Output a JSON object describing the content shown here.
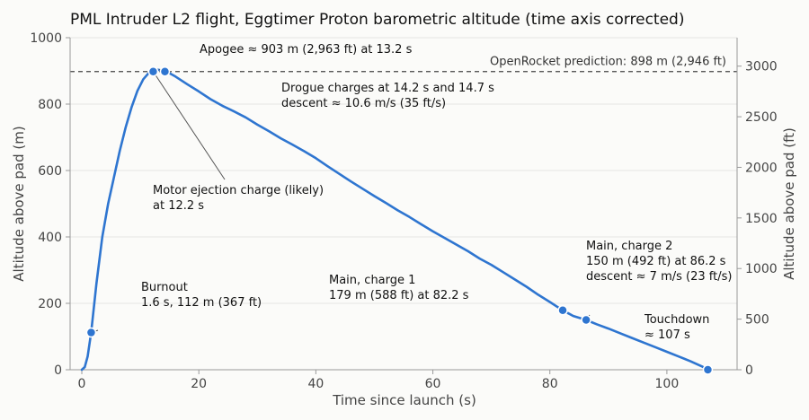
{
  "colors": {
    "line": "#2e75d0",
    "grid": "#e4e4e4",
    "axis": "#999999",
    "ref": "#444444",
    "background": "#fbfbf9"
  },
  "chart_data": {
    "type": "line",
    "title": "PML Intruder L2 flight, Eggtimer Proton barometric altitude (time axis corrected)",
    "xlabel": "Time since launch (s)",
    "ylabel": "Altitude above pad (m)",
    "y2label": "Altitude above pad (ft)",
    "xlim": [
      -2,
      112
    ],
    "ylim": [
      0,
      1000
    ],
    "y2lim": [
      0,
      3281
    ],
    "xticks": [
      0,
      20,
      40,
      60,
      80,
      100
    ],
    "yticks": [
      0,
      200,
      400,
      600,
      800,
      1000
    ],
    "y2ticks": [
      0,
      500,
      1000,
      1500,
      2000,
      2500,
      3000
    ],
    "grid": "horizontal",
    "series": [
      {
        "x": [
          0,
          0.5,
          1.0,
          1.6,
          2.5,
          3.5,
          4.5,
          5.5,
          6.5,
          7.5,
          8.5,
          9.5,
          10.5,
          11.5,
          12.2,
          13.2,
          14.2,
          14.7,
          16,
          18,
          20,
          22,
          24,
          26,
          28,
          30,
          32,
          34,
          36,
          38,
          40,
          42,
          44,
          46,
          48,
          50,
          52,
          54,
          56,
          58,
          60,
          62,
          64,
          66,
          68,
          70,
          72,
          74,
          76,
          78,
          80,
          82.2,
          84,
          86.2,
          88,
          90,
          92,
          94,
          96,
          98,
          100,
          102,
          104,
          106,
          107
        ],
        "y": [
          0,
          8,
          40,
          112,
          260,
          400,
          500,
          580,
          660,
          730,
          790,
          840,
          875,
          895,
          905,
          903,
          898,
          896,
          883,
          860,
          838,
          815,
          795,
          778,
          760,
          738,
          718,
          697,
          678,
          658,
          637,
          613,
          590,
          567,
          545,
          523,
          502,
          480,
          460,
          438,
          417,
          397,
          377,
          357,
          335,
          316,
          294,
          272,
          250,
          226,
          204,
          179,
          162,
          150,
          137,
          124,
          110,
          96,
          82,
          68,
          54,
          40,
          26,
          10,
          0
        ]
      }
    ],
    "reference_line": {
      "y": 898,
      "label": "OpenRocket prediction: 898 m (2,946 ft)"
    },
    "markers": [
      {
        "x": 1.6,
        "y": 112
      },
      {
        "x": 12.2,
        "y": 898
      },
      {
        "x": 14.2,
        "y": 898
      },
      {
        "x": 82.2,
        "y": 179
      },
      {
        "x": 86.2,
        "y": 150
      },
      {
        "x": 107,
        "y": 0
      }
    ],
    "annotations": [
      {
        "lines": [
          "Apogee ≈ 903 m (2,963 ft) at 13.2 s"
        ],
        "x": 13.2,
        "y": 903
      },
      {
        "lines": [
          "Drogue charges at 14.2 s and 14.7 s",
          "descent ≈ 10.6 m/s (35 ft/s)"
        ],
        "x": 14.2,
        "y": 898
      },
      {
        "lines": [
          "Motor ejection charge (likely)",
          "at 12.2 s"
        ],
        "x": 12.2,
        "y": 898
      },
      {
        "lines": [
          "Burnout",
          "1.6 s, 112 m (367 ft)"
        ],
        "x": 1.6,
        "y": 112
      },
      {
        "lines": [
          "Main, charge 1",
          "179 m (588 ft) at 82.2 s"
        ],
        "x": 82.2,
        "y": 179
      },
      {
        "lines": [
          "Main, charge 2",
          "150 m (492 ft) at 86.2 s",
          "descent ≈ 7 m/s (23 ft/s)"
        ],
        "x": 86.2,
        "y": 150
      },
      {
        "lines": [
          "Touchdown",
          "≈ 107 s"
        ],
        "x": 107,
        "y": 0
      }
    ]
  }
}
